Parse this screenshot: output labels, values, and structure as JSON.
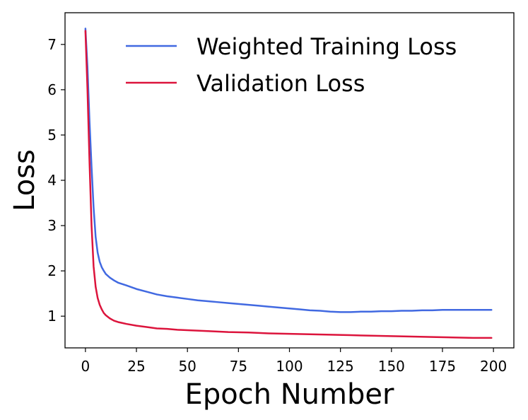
{
  "chart_data": {
    "type": "line",
    "title": "",
    "xlabel": "Epoch Number",
    "ylabel": "Loss",
    "xlim": [
      -10,
      210
    ],
    "ylim": [
      0.3,
      7.7
    ],
    "xticks": [
      0,
      25,
      50,
      75,
      100,
      125,
      150,
      175,
      200
    ],
    "yticks": [
      1,
      2,
      3,
      4,
      5,
      6,
      7
    ],
    "xtick_labels": [
      "0",
      "25",
      "50",
      "75",
      "100",
      "125",
      "150",
      "175",
      "200"
    ],
    "ytick_labels": [
      "1",
      "2",
      "3",
      "4",
      "5",
      "6",
      "7"
    ],
    "grid": false,
    "legend_position": "top-right",
    "series": [
      {
        "name": "Weighted Training Loss",
        "color": "#4169e1",
        "x": [
          0,
          1,
          2,
          3,
          4,
          5,
          6,
          7,
          8,
          9,
          10,
          12,
          14,
          16,
          18,
          20,
          25,
          30,
          35,
          40,
          45,
          50,
          55,
          60,
          65,
          70,
          75,
          80,
          85,
          90,
          95,
          100,
          105,
          110,
          115,
          120,
          125,
          130,
          135,
          140,
          145,
          150,
          155,
          160,
          165,
          170,
          175,
          180,
          185,
          190,
          195,
          199
        ],
        "values": [
          7.35,
          6.5,
          5.3,
          4.3,
          3.4,
          2.75,
          2.4,
          2.2,
          2.08,
          2.0,
          1.93,
          1.85,
          1.79,
          1.74,
          1.71,
          1.68,
          1.6,
          1.54,
          1.48,
          1.44,
          1.41,
          1.38,
          1.35,
          1.33,
          1.31,
          1.29,
          1.27,
          1.25,
          1.23,
          1.21,
          1.19,
          1.17,
          1.15,
          1.13,
          1.12,
          1.1,
          1.09,
          1.09,
          1.1,
          1.1,
          1.11,
          1.11,
          1.12,
          1.12,
          1.13,
          1.13,
          1.14,
          1.14,
          1.14,
          1.14,
          1.14,
          1.14
        ]
      },
      {
        "name": "Validation Loss",
        "color": "#dc143c",
        "x": [
          0,
          1,
          2,
          3,
          4,
          5,
          6,
          7,
          8,
          9,
          10,
          12,
          14,
          16,
          18,
          20,
          25,
          30,
          35,
          40,
          45,
          50,
          60,
          70,
          80,
          90,
          100,
          110,
          120,
          130,
          140,
          150,
          160,
          170,
          180,
          190,
          199
        ],
        "values": [
          7.3,
          6.0,
          4.4,
          3.0,
          2.1,
          1.65,
          1.4,
          1.25,
          1.15,
          1.07,
          1.02,
          0.95,
          0.9,
          0.87,
          0.85,
          0.83,
          0.79,
          0.76,
          0.73,
          0.72,
          0.7,
          0.69,
          0.67,
          0.65,
          0.64,
          0.62,
          0.61,
          0.6,
          0.59,
          0.58,
          0.57,
          0.56,
          0.55,
          0.54,
          0.53,
          0.52,
          0.52
        ]
      }
    ]
  }
}
